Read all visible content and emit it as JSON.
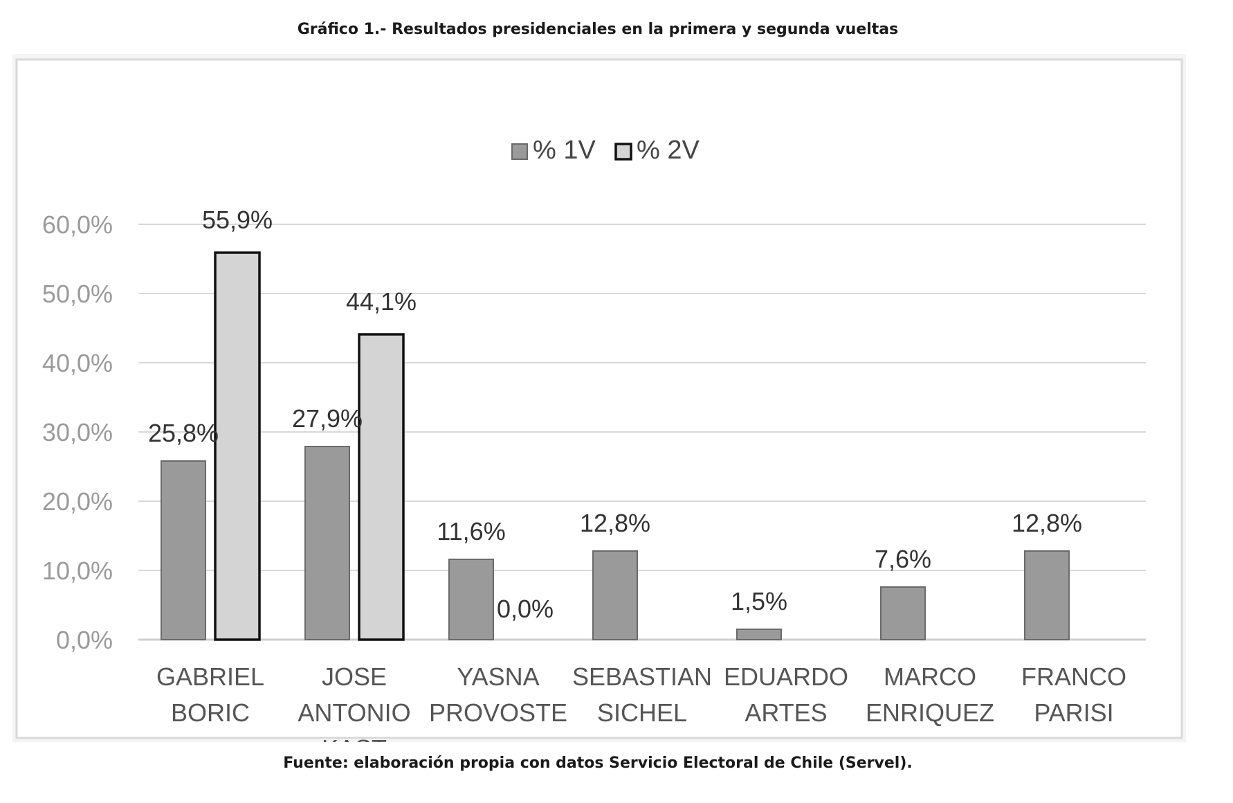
{
  "page": {
    "title": "Gráfico 1.- Resultados presidenciales en la primera y segunda vueltas",
    "source": "Fuente: elaboración propia con datos Servicio Electoral de Chile (Servel)."
  },
  "chart_data": {
    "type": "bar",
    "categories": [
      [
        "GABRIEL",
        "BORIC"
      ],
      [
        "JOSE",
        "ANTONIO",
        "KAST"
      ],
      [
        "YASNA",
        "PROVOSTE"
      ],
      [
        "SEBASTIAN",
        "SICHEL"
      ],
      [
        "EDUARDO",
        "ARTES"
      ],
      [
        "MARCO",
        "ENRIQUEZ"
      ],
      [
        "FRANCO",
        "PARISI"
      ]
    ],
    "series": [
      {
        "name": "% 1V",
        "values": [
          25.8,
          27.9,
          11.6,
          12.8,
          1.5,
          7.6,
          12.8
        ],
        "labels": [
          "25,8%",
          "27,9%",
          "11,6%",
          "12,8%",
          "1,5%",
          "7,6%",
          "12,8%"
        ],
        "color": "#9a9a9a"
      },
      {
        "name": "% 2V",
        "values": [
          55.9,
          44.1,
          0.0,
          null,
          null,
          null,
          null
        ],
        "labels": [
          "55,9%",
          "44,1%",
          "0,0%",
          null,
          null,
          null,
          null
        ],
        "color": "#d4d4d4"
      }
    ],
    "ylim": [
      0,
      60
    ],
    "yticks": [
      0,
      10,
      20,
      30,
      40,
      50,
      60
    ],
    "ytick_labels": [
      "0,0%",
      "10,0%",
      "20,0%",
      "30,0%",
      "40,0%",
      "50,0%",
      "60,0%"
    ],
    "grid": true,
    "legend_position": "top-center",
    "xlabel": "",
    "ylabel": ""
  }
}
